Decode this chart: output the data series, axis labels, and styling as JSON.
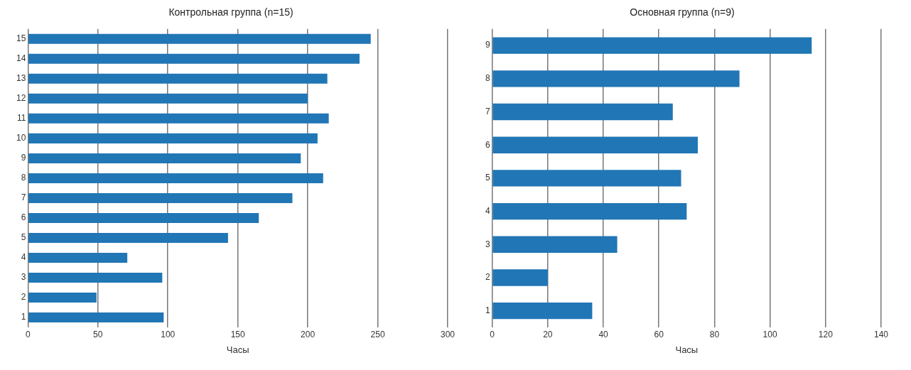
{
  "chart_data": [
    {
      "type": "bar",
      "orientation": "horizontal",
      "title": "Контрольная группа (n=15)",
      "xlabel": "Часы",
      "categories": [
        "15",
        "14",
        "13",
        "12",
        "11",
        "10",
        "9",
        "8",
        "7",
        "6",
        "5",
        "4",
        "3",
        "2",
        "1"
      ],
      "values": [
        245,
        237,
        214,
        200,
        215,
        207,
        195,
        211,
        189,
        165,
        143,
        71,
        96,
        49,
        97
      ],
      "color": "#2176b5",
      "xlim": [
        0,
        300
      ],
      "xticks": [
        0,
        50,
        100,
        150,
        200,
        250,
        300
      ],
      "grid": "x",
      "legend": false
    },
    {
      "type": "bar",
      "orientation": "horizontal",
      "title": "Основная группа (n=9)",
      "xlabel": "Часы",
      "categories": [
        "9",
        "8",
        "7",
        "6",
        "5",
        "4",
        "3",
        "2",
        "1"
      ],
      "values": [
        115,
        89,
        65,
        74,
        68,
        70,
        45,
        20,
        36
      ],
      "color": "#2176b5",
      "xlim": [
        0,
        140
      ],
      "xticks": [
        0,
        20,
        40,
        60,
        80,
        100,
        120,
        140
      ],
      "grid": "x",
      "legend": false
    }
  ]
}
